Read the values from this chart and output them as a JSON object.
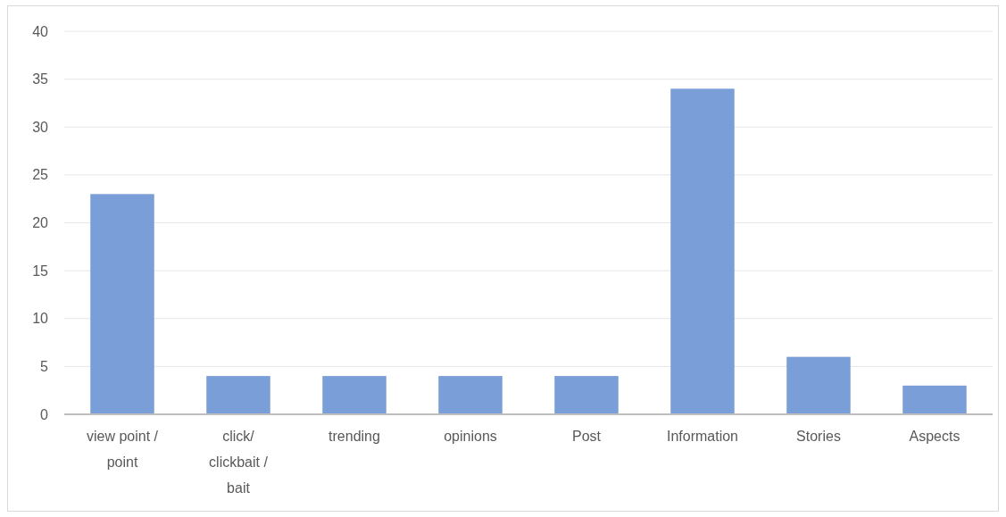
{
  "chart_data": {
    "type": "bar",
    "categories": [
      "view point / point",
      "click/ clickbait / bait",
      "trending",
      "opinions",
      "Post",
      "Information",
      "Stories",
      "Aspects"
    ],
    "values": [
      23,
      4,
      4,
      4,
      4,
      34,
      6,
      3
    ],
    "color": "#7a9fd8",
    "ylim": [
      0,
      40
    ],
    "yticks": [
      0,
      5,
      10,
      15,
      20,
      25,
      30,
      35,
      40
    ],
    "grid": "y"
  }
}
